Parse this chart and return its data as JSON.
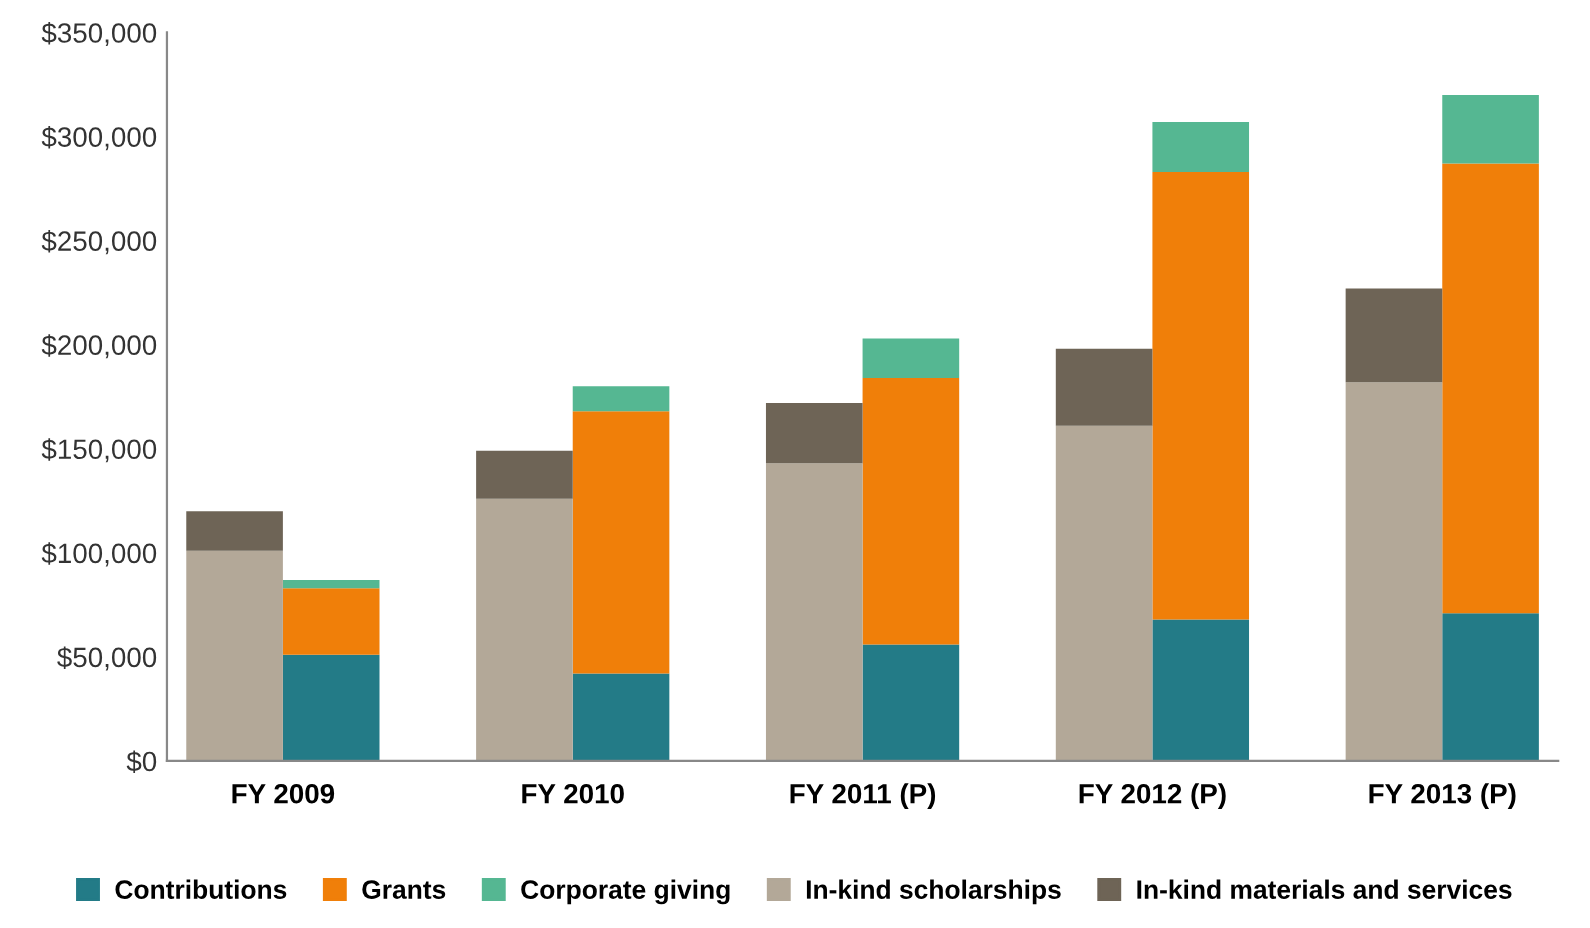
{
  "chart_data": {
    "type": "bar",
    "stacked": true,
    "categories": [
      "FY 2009",
      null,
      null,
      "FY 2010",
      null,
      null,
      "FY 2011 (P)",
      null,
      null,
      "FY 2012 (P)",
      null,
      null,
      "FY 2013 (P)",
      null
    ],
    "series": [
      {
        "name": "Contributions",
        "color": "#237b87",
        "values": [
          null,
          51000,
          null,
          null,
          42000,
          null,
          null,
          56000,
          null,
          null,
          68000,
          null,
          null,
          71000
        ]
      },
      {
        "name": "Grants",
        "color": "#f07f09",
        "values": [
          null,
          32000,
          null,
          null,
          126000,
          null,
          null,
          128000,
          null,
          null,
          215000,
          null,
          null,
          216000
        ]
      },
      {
        "name": "Corporate giving",
        "color": "#55b792",
        "values": [
          null,
          4000,
          null,
          null,
          12000,
          null,
          null,
          19000,
          null,
          null,
          24000,
          null,
          null,
          33000
        ]
      },
      {
        "name": "In-kind scholarships",
        "color": "#b3a898",
        "values": [
          101000,
          null,
          null,
          126000,
          null,
          null,
          143000,
          null,
          null,
          161000,
          null,
          null,
          182000,
          null
        ]
      },
      {
        "name": "In-kind materials and services",
        "color": "#6e6456",
        "values": [
          19000,
          null,
          null,
          23000,
          null,
          null,
          29000,
          null,
          null,
          37000,
          null,
          null,
          45000,
          null
        ]
      }
    ],
    "ylim": [
      0,
      350000
    ],
    "yticks": [
      {
        "value": 0,
        "label": "$0"
      },
      {
        "value": 50000,
        "label": "$50,000"
      },
      {
        "value": 100000,
        "label": "$100,000"
      },
      {
        "value": 150000,
        "label": "$150,000"
      },
      {
        "value": 200000,
        "label": "$200,000"
      },
      {
        "value": 250000,
        "label": "$250,000"
      },
      {
        "value": 300000,
        "label": "$300,000"
      },
      {
        "value": 350000,
        "label": "$350,000"
      }
    ],
    "grid": false,
    "legend": "bottom"
  }
}
